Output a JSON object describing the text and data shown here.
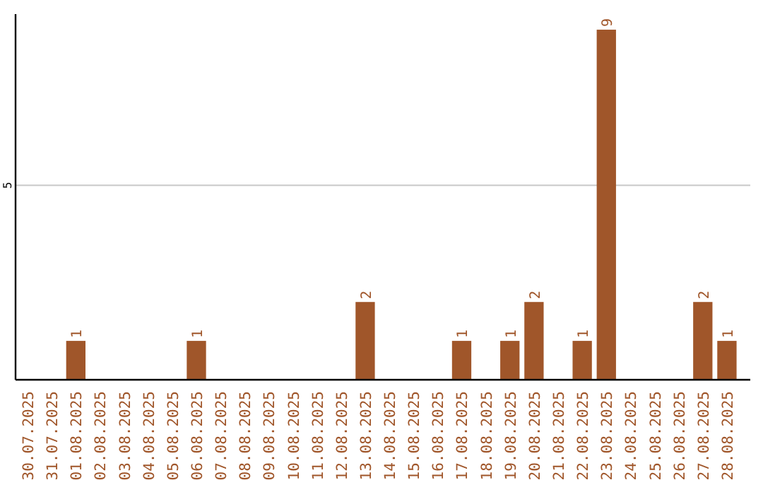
{
  "chart_data": {
    "type": "bar",
    "categories": [
      "30.07.2025",
      "31.07.2025",
      "01.08.2025",
      "02.08.2025",
      "03.08.2025",
      "04.08.2025",
      "05.08.2025",
      "06.08.2025",
      "07.08.2025",
      "08.08.2025",
      "09.08.2025",
      "10.08.2025",
      "11.08.2025",
      "12.08.2025",
      "13.08.2025",
      "14.08.2025",
      "15.08.2025",
      "16.08.2025",
      "17.08.2025",
      "18.08.2025",
      "19.08.2025",
      "20.08.2025",
      "21.08.2025",
      "22.08.2025",
      "23.08.2025",
      "24.08.2025",
      "25.08.2025",
      "26.08.2025",
      "27.08.2025",
      "28.08.2025"
    ],
    "values": [
      0,
      0,
      1,
      0,
      0,
      0,
      0,
      1,
      0,
      0,
      0,
      0,
      0,
      0,
      2,
      0,
      0,
      0,
      1,
      0,
      1,
      2,
      0,
      1,
      9,
      0,
      0,
      0,
      2,
      1
    ],
    "value_labels": [
      null,
      null,
      "1",
      null,
      null,
      null,
      null,
      "1",
      null,
      null,
      null,
      null,
      null,
      null,
      "2",
      null,
      null,
      null,
      "1",
      null,
      "1",
      "2",
      null,
      "1",
      "9",
      null,
      null,
      null,
      "2",
      "1"
    ],
    "color": "#a0562a",
    "ylim": [
      0,
      9.4
    ],
    "yticks": [
      5
    ],
    "grid": "y"
  }
}
